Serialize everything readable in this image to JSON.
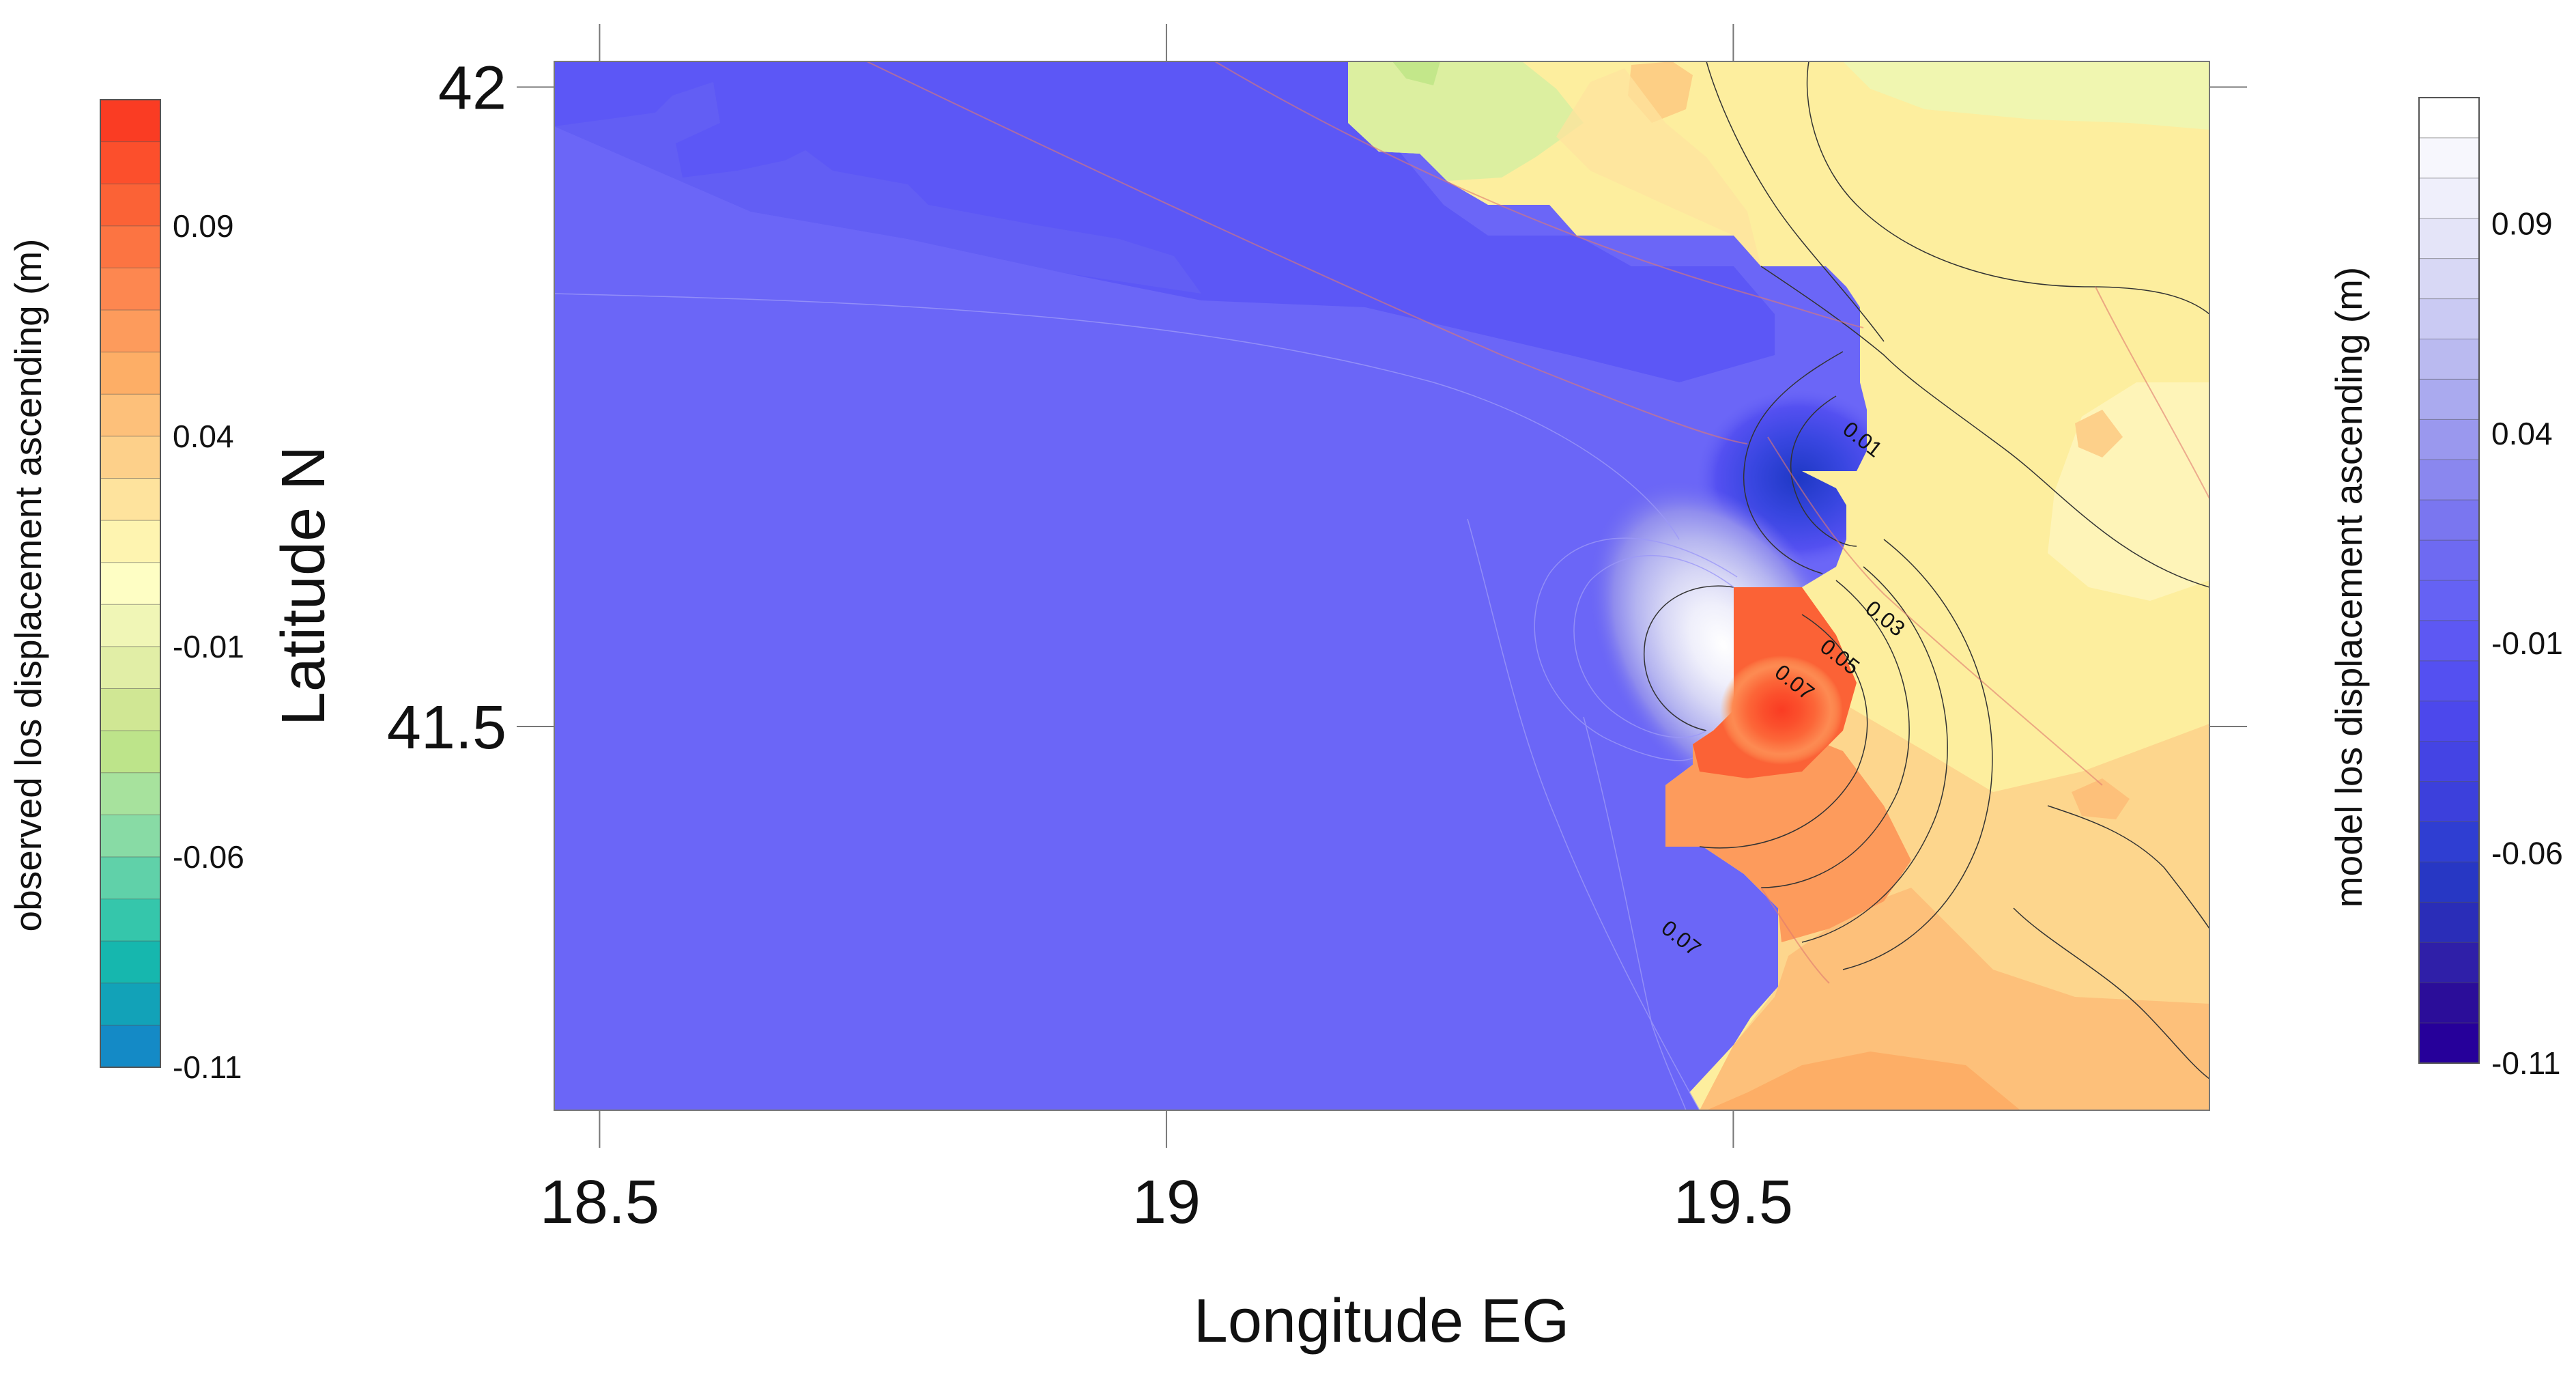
{
  "chart_data": {
    "type": "heatmap",
    "title": "",
    "xlabel": "Longitude EG",
    "ylabel": "Latitude N",
    "xlim": [
      18.46,
      19.92
    ],
    "ylim": [
      41.2,
      42.02
    ],
    "x_ticks": [
      18.5,
      19,
      19.5
    ],
    "x_tick_labels": [
      "18.5",
      "19",
      "19.5"
    ],
    "y_ticks": [
      41.5,
      42
    ],
    "y_tick_labels": [
      "41.5",
      "42"
    ],
    "grid": false,
    "observed_colorbar": {
      "label": "observed los displacement ascending (m)",
      "placement": "left",
      "range": [
        -0.11,
        0.12
      ],
      "tick_values": [
        0.09,
        0.04,
        -0.01,
        -0.06,
        -0.11
      ],
      "tick_labels": [
        "0.09",
        "0.04",
        "-0.01",
        "-0.06",
        "-0.11"
      ],
      "colors_top_to_bottom": [
        "#fa3c23",
        "#fc4f2c",
        "#fb6236",
        "#fc7442",
        "#fd8750",
        "#fd9b5c",
        "#fdae66",
        "#fdc07a",
        "#fdd08a",
        "#fee39d",
        "#fef4b0",
        "#fefec4",
        "#f0f6b6",
        "#e1eea6",
        "#d0e794",
        "#bde48a",
        "#a7e29d",
        "#88dba5",
        "#60d1a9",
        "#35c6ab",
        "#16b7ae",
        "#12a2b8",
        "#148ac6"
      ]
    },
    "model_colorbar": {
      "label": "model los displacement ascending (m)",
      "placement": "right",
      "range": [
        -0.11,
        0.12
      ],
      "tick_values": [
        0.09,
        0.04,
        -0.01,
        -0.06,
        -0.11
      ],
      "tick_labels": [
        "0.09",
        "0.04",
        "-0.01",
        "-0.06",
        "-0.11"
      ],
      "colors_top_to_bottom": [
        "#ffffff",
        "#f7f7fd",
        "#efeffb",
        "#e4e4f8",
        "#d8d8f5",
        "#cacaf3",
        "#babaf0",
        "#aaaaef",
        "#9a98ee",
        "#8a87ef",
        "#7a76f0",
        "#6e6af2",
        "#6562f4",
        "#5d58f3",
        "#5450f1",
        "#4c48ec",
        "#4444e4",
        "#3c40dc",
        "#2f3ed2",
        "#2737c4",
        "#2a2db8",
        "#2f1fa8",
        "#2b0d99",
        "#26009a"
      ]
    },
    "contour_labels": [
      {
        "text": "0.01",
        "lon": 19.61,
        "lat": 41.72
      },
      {
        "text": "0.03",
        "lon": 19.63,
        "lat": 41.58
      },
      {
        "text": "0.05",
        "lon": 19.59,
        "lat": 41.55
      },
      {
        "text": "0.07",
        "lon": 19.55,
        "lat": 41.53
      },
      {
        "text": "0.07",
        "lon": 19.45,
        "lat": 41.33
      }
    ],
    "observed_region_fill": {
      "northeast_value_range": [
        -0.03,
        0.03
      ],
      "east_value_range": [
        0.02,
        0.05
      ],
      "southeast_value_range": [
        0.04,
        0.08
      ],
      "max_value": 0.11
    },
    "model_region_fill": {
      "offshore_value_range": [
        -0.01,
        0.0
      ],
      "max_value": 0.12,
      "min_value": -0.06
    }
  }
}
